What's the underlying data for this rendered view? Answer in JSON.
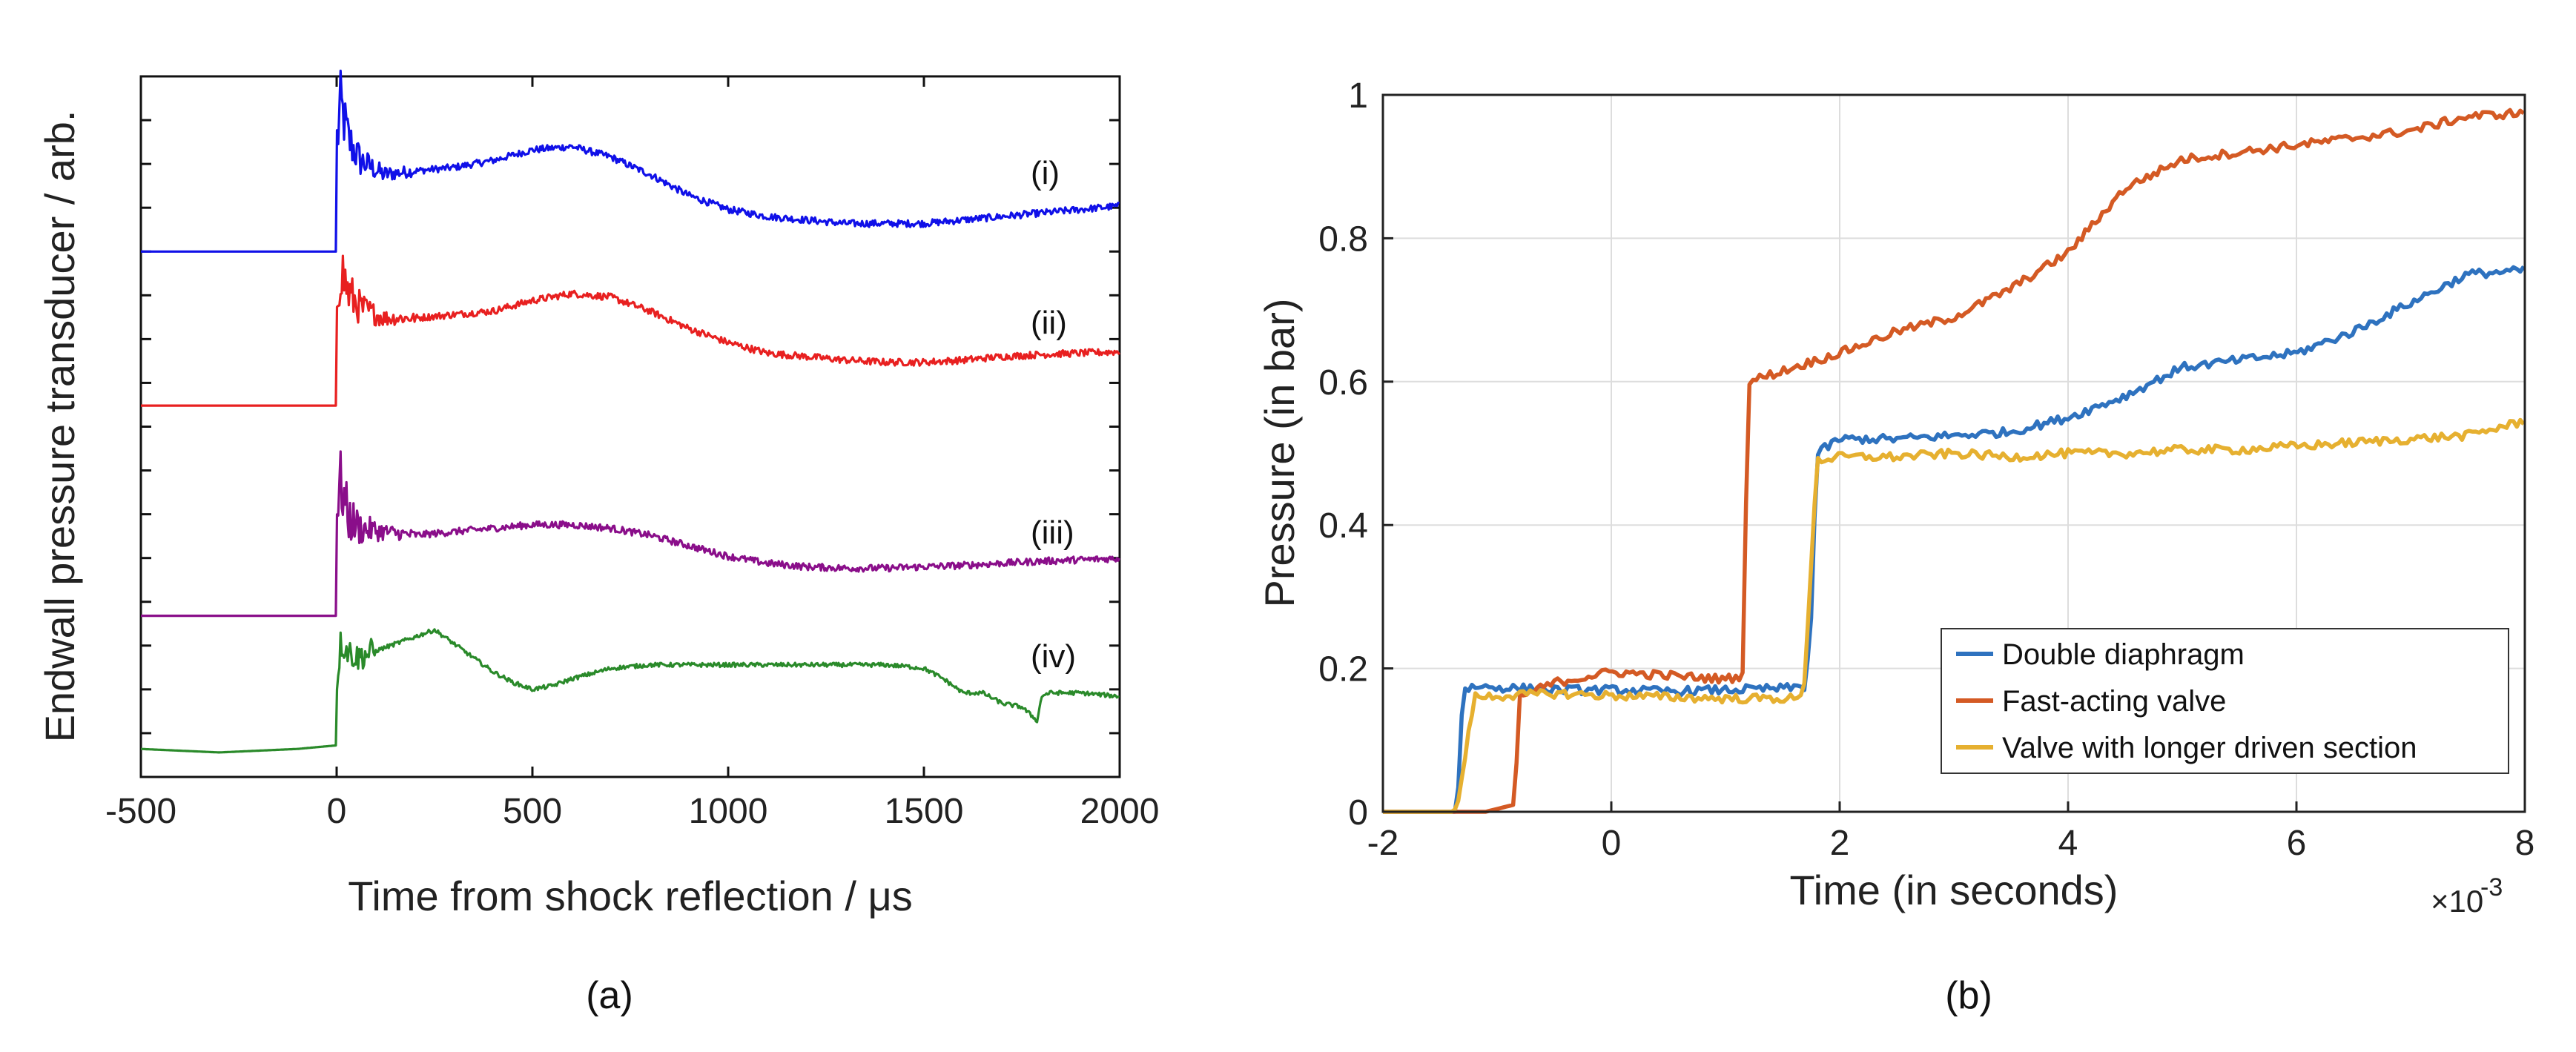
{
  "chart_data": [
    {
      "type": "line",
      "panel_label": "(a)",
      "xlabel": "Time from shock reflection / μs",
      "ylabel": "Endwall pressure transducer / arb.",
      "xlim": [
        -500,
        2000
      ],
      "xticks": [
        "-500",
        "0",
        "500",
        "1000",
        "1500",
        "2000"
      ],
      "grid": false,
      "series": [
        {
          "name": "(i)",
          "color": "#1010e8",
          "baseline": 0.75,
          "x": [
            -500,
            -2,
            0,
            10,
            30,
            60,
            120,
            200,
            300,
            400,
            500,
            600,
            700,
            800,
            900,
            1000,
            1100,
            1200,
            1300,
            1400,
            1500,
            1600,
            1700,
            1800,
            1900,
            2000
          ],
          "y": [
            0.75,
            0.75,
            0.9,
            0.96,
            0.91,
            0.88,
            0.86,
            0.865,
            0.87,
            0.88,
            0.895,
            0.9,
            0.885,
            0.86,
            0.83,
            0.81,
            0.8,
            0.795,
            0.79,
            0.79,
            0.79,
            0.795,
            0.8,
            0.805,
            0.81,
            0.815
          ]
        },
        {
          "name": "(ii)",
          "color": "#e82020",
          "baseline": 0.53,
          "x": [
            -500,
            -2,
            0,
            10,
            30,
            60,
            120,
            200,
            300,
            400,
            500,
            600,
            700,
            800,
            900,
            1000,
            1100,
            1200,
            1300,
            1400,
            1500,
            1600,
            1700,
            1800,
            1900,
            2000
          ],
          "y": [
            0.53,
            0.53,
            0.68,
            0.73,
            0.69,
            0.67,
            0.655,
            0.655,
            0.66,
            0.665,
            0.68,
            0.69,
            0.685,
            0.665,
            0.64,
            0.62,
            0.605,
            0.6,
            0.595,
            0.592,
            0.592,
            0.595,
            0.6,
            0.603,
            0.605,
            0.607
          ]
        },
        {
          "name": "(iii)",
          "color": "#8a0e8a",
          "baseline": 0.23,
          "x": [
            -500,
            -2,
            0,
            10,
            30,
            60,
            120,
            200,
            300,
            400,
            500,
            600,
            700,
            800,
            900,
            1000,
            1100,
            1200,
            1300,
            1400,
            1500,
            1600,
            1700,
            1800,
            1900,
            2000
          ],
          "y": [
            0.23,
            0.23,
            0.38,
            0.42,
            0.37,
            0.355,
            0.35,
            0.345,
            0.35,
            0.355,
            0.36,
            0.36,
            0.355,
            0.345,
            0.33,
            0.315,
            0.305,
            0.3,
            0.298,
            0.298,
            0.3,
            0.302,
            0.305,
            0.308,
            0.31,
            0.312
          ]
        },
        {
          "name": "(iv)",
          "color": "#2a8a2a",
          "baseline": 0.04,
          "x": [
            -500,
            -300,
            -100,
            -2,
            0,
            10,
            50,
            100,
            150,
            200,
            250,
            300,
            350,
            400,
            450,
            500,
            550,
            600,
            700,
            800,
            900,
            1000,
            1100,
            1200,
            1300,
            1400,
            1450,
            1500,
            1550,
            1600,
            1650,
            1700,
            1750,
            1790,
            1800,
            1820,
            1900,
            2000
          ],
          "y": [
            0.04,
            0.035,
            0.04,
            0.045,
            0.13,
            0.19,
            0.17,
            0.18,
            0.19,
            0.2,
            0.21,
            0.19,
            0.17,
            0.15,
            0.135,
            0.125,
            0.13,
            0.14,
            0.155,
            0.16,
            0.16,
            0.16,
            0.16,
            0.16,
            0.16,
            0.16,
            0.158,
            0.155,
            0.14,
            0.12,
            0.12,
            0.105,
            0.1,
            0.08,
            0.115,
            0.12,
            0.12,
            0.115
          ]
        }
      ]
    },
    {
      "type": "line",
      "panel_label": "(b)",
      "xlabel": "Time (in seconds)",
      "ylabel": "Pressure (in bar)",
      "x_multiplier": "×10⁻³",
      "x_exp_base": "×10",
      "x_exp_power": "-3",
      "xlim": [
        -2,
        8
      ],
      "ylim": [
        0,
        1
      ],
      "xticks": [
        "-2",
        "0",
        "2",
        "4",
        "6",
        "8"
      ],
      "yticks": [
        "0",
        "0.2",
        "0.4",
        "0.6",
        "0.8",
        "1"
      ],
      "grid": true,
      "legend_position": "bottom-right",
      "series": [
        {
          "name": "Double diaphragm",
          "color": "#2e72bf",
          "x": [
            -2,
            -1.35,
            -1.3,
            -1.2,
            -0.5,
            0,
            0.5,
            1.0,
            1.5,
            1.7,
            1.75,
            1.8,
            2.0,
            2.5,
            3.0,
            3.5,
            4.0,
            4.5,
            5.0,
            5.5,
            6.0,
            6.5,
            7.0,
            7.5,
            8.0
          ],
          "y": [
            0,
            0,
            0.17,
            0.175,
            0.17,
            0.17,
            0.168,
            0.17,
            0.172,
            0.175,
            0.27,
            0.5,
            0.52,
            0.52,
            0.525,
            0.53,
            0.55,
            0.58,
            0.62,
            0.63,
            0.64,
            0.67,
            0.71,
            0.75,
            0.755
          ]
        },
        {
          "name": "Fast-acting valve",
          "color": "#d45a24",
          "x": [
            -2,
            -1.1,
            -0.85,
            -0.8,
            -0.5,
            0,
            0.5,
            1.0,
            1.15,
            1.2,
            1.5,
            2.0,
            2.5,
            3.0,
            3.5,
            4.0,
            4.5,
            5.0,
            5.5,
            6.0,
            6.5,
            7.0,
            7.5,
            8.0
          ],
          "y": [
            0,
            0,
            0.01,
            0.16,
            0.18,
            0.195,
            0.19,
            0.185,
            0.19,
            0.6,
            0.615,
            0.64,
            0.67,
            0.69,
            0.73,
            0.78,
            0.87,
            0.91,
            0.92,
            0.93,
            0.94,
            0.95,
            0.97,
            0.975
          ]
        },
        {
          "name": "Valve with longer driven section",
          "color": "#e6b030",
          "x": [
            -2,
            -1.4,
            -1.35,
            -1.2,
            -0.5,
            0,
            0.5,
            1.0,
            1.5,
            1.68,
            1.72,
            1.8,
            2.0,
            2.5,
            3.0,
            3.5,
            4.0,
            4.5,
            5.0,
            5.5,
            6.0,
            6.5,
            7.0,
            7.5,
            8.0
          ],
          "y": [
            0,
            0,
            0.005,
            0.16,
            0.165,
            0.162,
            0.16,
            0.158,
            0.158,
            0.158,
            0.26,
            0.49,
            0.495,
            0.495,
            0.5,
            0.495,
            0.5,
            0.5,
            0.505,
            0.505,
            0.51,
            0.515,
            0.52,
            0.525,
            0.545
          ]
        }
      ]
    }
  ]
}
